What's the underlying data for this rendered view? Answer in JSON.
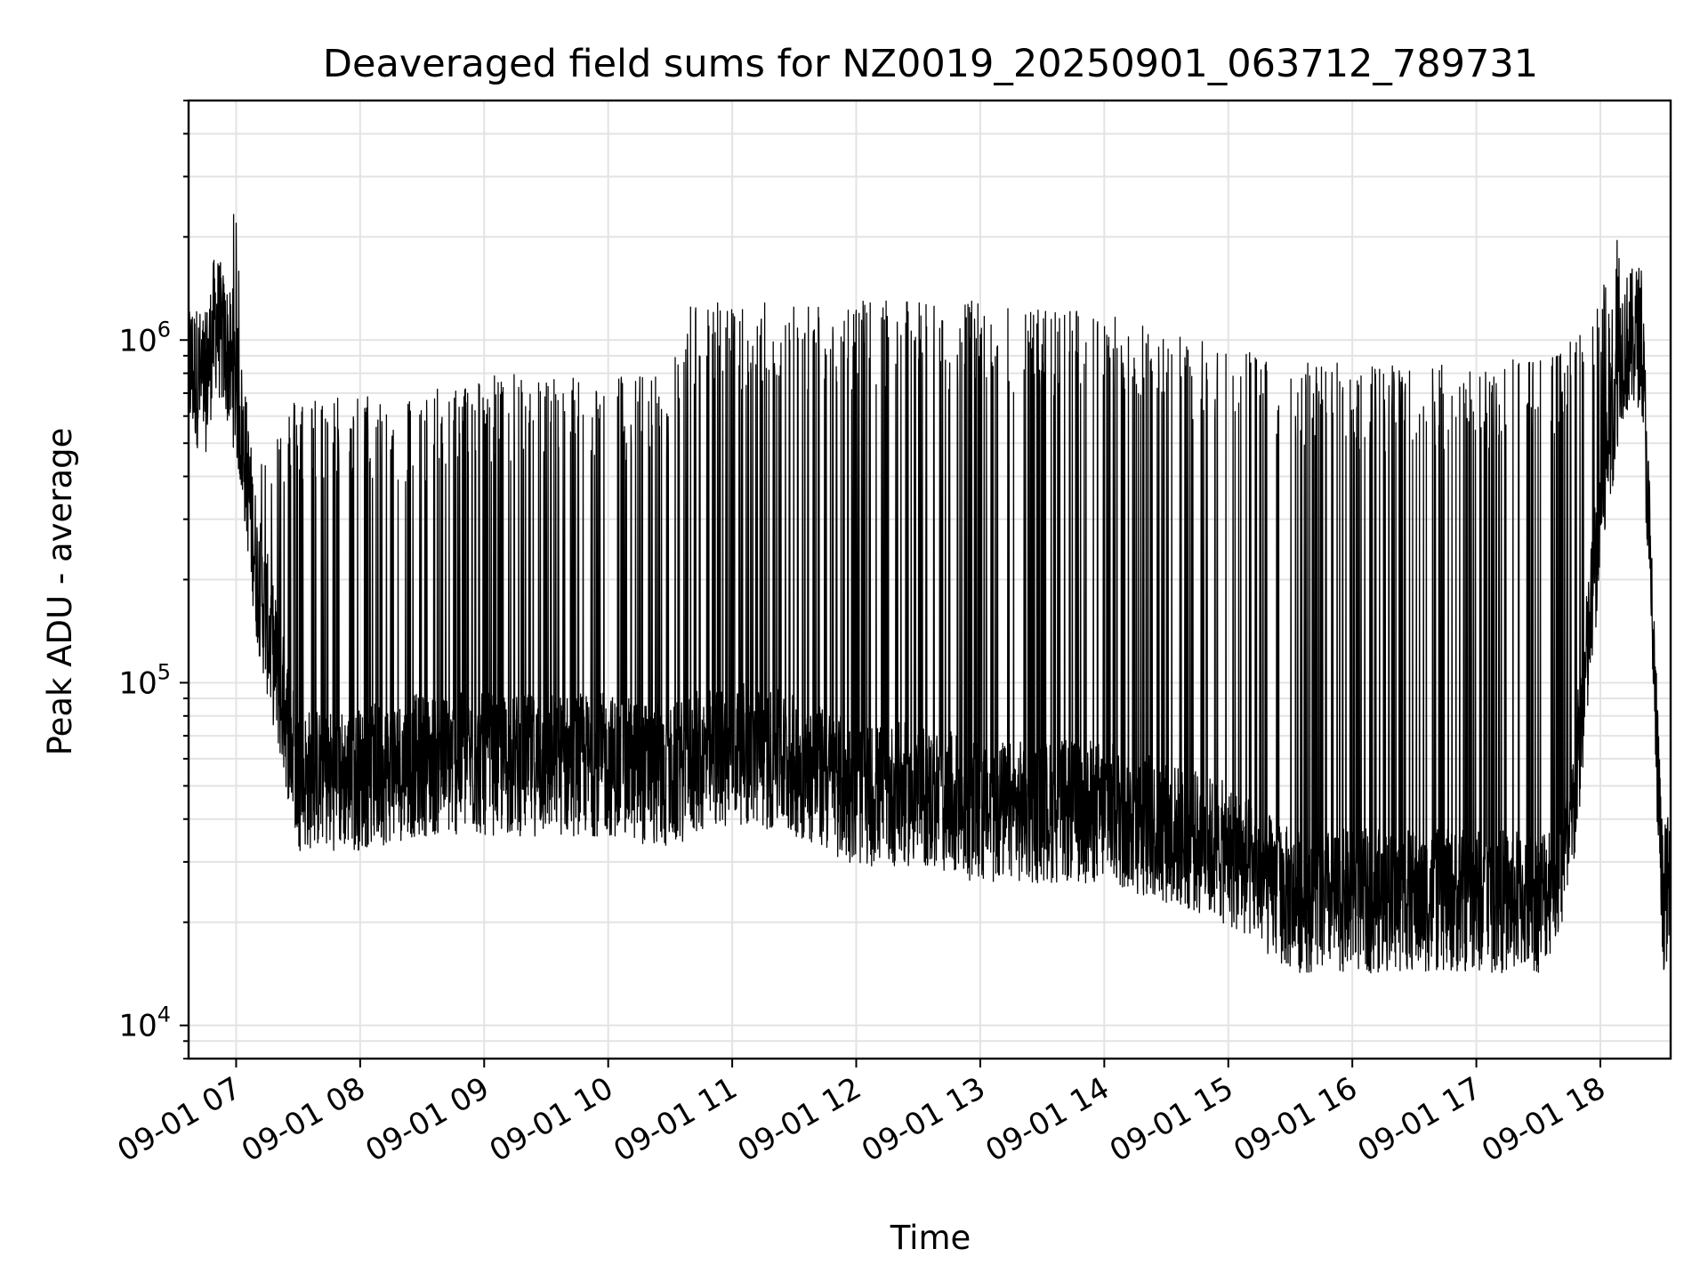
{
  "chart_data": {
    "type": "line",
    "title": "Deaveraged field sums for NZ0019_20250901_063712_789731",
    "xlabel": "Time",
    "ylabel": "Peak ADU - average",
    "yscale": "log",
    "ylim": [
      8000,
      5000000
    ],
    "xlim": [
      "2025-09-01 06:37",
      "2025-09-01 18:34"
    ],
    "x_ticks": [
      "09-01 07",
      "09-01 08",
      "09-01 09",
      "09-01 10",
      "09-01 11",
      "09-01 12",
      "09-01 13",
      "09-01 14",
      "09-01 15",
      "09-01 16",
      "09-01 17",
      "09-01 18"
    ],
    "y_ticks": [
      {
        "value": 10000,
        "base": "10",
        "exp": "4"
      },
      {
        "value": 100000,
        "base": "10",
        "exp": "5"
      },
      {
        "value": 1000000,
        "base": "10",
        "exp": "6"
      }
    ],
    "grid": true,
    "line_color": "#000000",
    "series": [
      {
        "name": "",
        "x": [
          "2025-09-01 06:37",
          "2025-09-01 06:45",
          "2025-09-01 06:50",
          "2025-09-01 06:55",
          "2025-09-01 07:00",
          "2025-09-01 07:05",
          "2025-09-01 07:10",
          "2025-09-01 07:20",
          "2025-09-01 07:30",
          "2025-09-01 08:00",
          "2025-09-01 08:30",
          "2025-09-01 09:00",
          "2025-09-01 09:30",
          "2025-09-01 10:00",
          "2025-09-01 10:30",
          "2025-09-01 10:40",
          "2025-09-01 11:00",
          "2025-09-01 11:30",
          "2025-09-01 12:00",
          "2025-09-01 12:30",
          "2025-09-01 13:00",
          "2025-09-01 13:30",
          "2025-09-01 14:00",
          "2025-09-01 14:30",
          "2025-09-01 15:00",
          "2025-09-01 15:30",
          "2025-09-01 16:00",
          "2025-09-01 16:30",
          "2025-09-01 17:00",
          "2025-09-01 17:30",
          "2025-09-01 17:45",
          "2025-09-01 18:00",
          "2025-09-01 18:10",
          "2025-09-01 18:20",
          "2025-09-01 18:30",
          "2025-09-01 18:34"
        ],
        "baseline": [
          800000,
          700000,
          1100000,
          900000,
          700000,
          400000,
          200000,
          100000,
          50000,
          50000,
          55000,
          55000,
          55000,
          55000,
          50000,
          55000,
          60000,
          55000,
          45000,
          45000,
          40000,
          40000,
          40000,
          35000,
          30000,
          22000,
          22000,
          22000,
          22000,
          22000,
          30000,
          300000,
          900000,
          1000000,
          22000,
          25000
        ],
        "peak": [
          900000,
          800000,
          1300000,
          1700000,
          2600000,
          500000,
          450000,
          600000,
          700000,
          700000,
          700000,
          800000,
          800000,
          800000,
          800000,
          1300000,
          1300000,
          1300000,
          1300000,
          1300000,
          1300000,
          1250000,
          1200000,
          1100000,
          950000,
          900000,
          850000,
          850000,
          850000,
          900000,
          1000000,
          1300000,
          2500000,
          1200000,
          30000,
          32000
        ]
      }
    ]
  }
}
